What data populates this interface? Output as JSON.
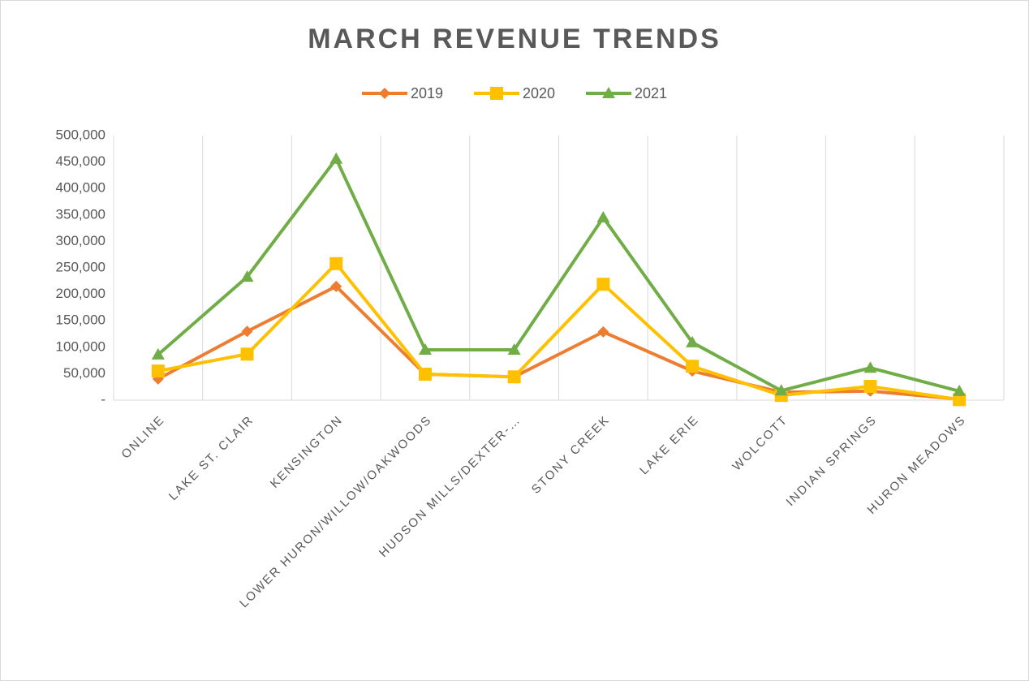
{
  "chart_data": {
    "type": "line",
    "title": "MARCH REVENUE TRENDS",
    "categories": [
      "ONLINE",
      "LAKE ST. CLAIR",
      "KENSINGTON",
      "LOWER HURON/WILLOW/OAKWOODS",
      "HUDSON MILLS/DEXTER-…",
      "STONY CREEK",
      "LAKE ERIE",
      "WOLCOTT",
      "INDIAN SPRINGS",
      "HURON MEADOWS"
    ],
    "series": [
      {
        "name": "2019",
        "color": "#ed7d31",
        "marker": "diamond",
        "values": [
          40000,
          130000,
          215000,
          49000,
          44000,
          129000,
          55000,
          15000,
          17000,
          2000
        ]
      },
      {
        "name": "2020",
        "color": "#ffc000",
        "marker": "square",
        "values": [
          55000,
          87000,
          258000,
          49000,
          44000,
          219000,
          64000,
          9000,
          26000,
          1000
        ]
      },
      {
        "name": "2021",
        "color": "#70ad47",
        "marker": "triangle",
        "values": [
          86000,
          233000,
          456000,
          95000,
          95000,
          345000,
          109000,
          18000,
          61000,
          17000
        ]
      }
    ],
    "ylim": [
      0,
      500000
    ],
    "yticks": [
      {
        "value": 0,
        "label": "-"
      },
      {
        "value": 50000,
        "label": "50,000"
      },
      {
        "value": 100000,
        "label": "100,000"
      },
      {
        "value": 150000,
        "label": "150,000"
      },
      {
        "value": 200000,
        "label": "200,000"
      },
      {
        "value": 250000,
        "label": "250,000"
      },
      {
        "value": 300000,
        "label": "300,000"
      },
      {
        "value": 350000,
        "label": "350,000"
      },
      {
        "value": 400000,
        "label": "400,000"
      },
      {
        "value": 450000,
        "label": "450,000"
      },
      {
        "value": 500000,
        "label": "500,000"
      }
    ],
    "legend": "top",
    "grid": "vertical"
  }
}
